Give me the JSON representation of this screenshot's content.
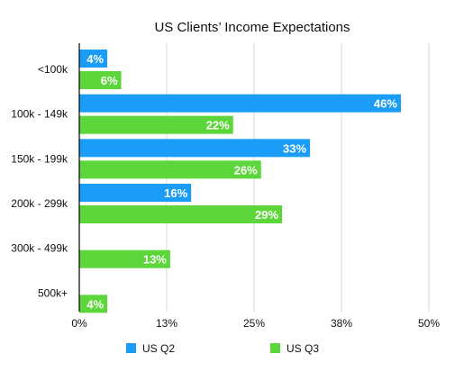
{
  "chart_data": {
    "type": "bar",
    "orientation": "horizontal",
    "title": "US Clients’ Income Expectations",
    "xlabel": "",
    "ylabel": "",
    "categories": [
      "<100k",
      "100k - 149k",
      "150k - 199k",
      "200k - 299k",
      "300k - 499k",
      "500k+"
    ],
    "series": [
      {
        "name": "US Q2",
        "values": [
          4,
          46,
          33,
          16,
          null,
          null
        ],
        "labels": [
          "4%",
          "46%",
          "33%",
          "16%",
          "",
          ""
        ],
        "color": "#1a9cf7"
      },
      {
        "name": "US Q3",
        "values": [
          6,
          22,
          26,
          29,
          13,
          4
        ],
        "labels": [
          "6%",
          "22%",
          "26%",
          "29%",
          "13%",
          "4%"
        ],
        "color": "#5cd63a"
      }
    ],
    "xlim": [
      0,
      50
    ],
    "ticks": [
      0,
      12.5,
      25,
      37.5,
      50
    ],
    "tick_labels": [
      "0%",
      "13%",
      "25%",
      "38%",
      "50%"
    ],
    "grid": true,
    "legend_position": "bottom"
  }
}
